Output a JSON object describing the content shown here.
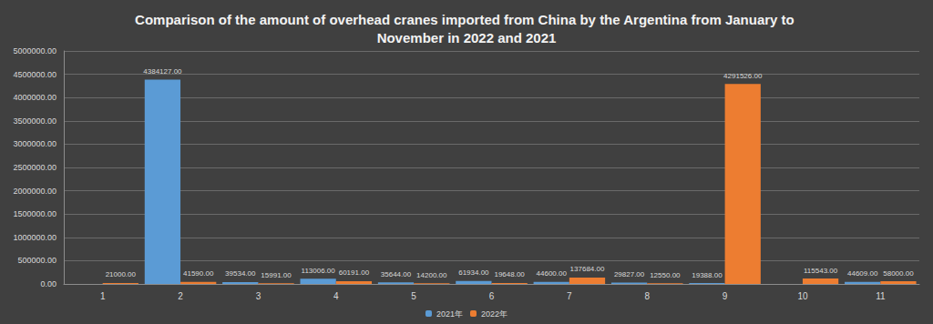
{
  "chart_data": {
    "type": "bar",
    "title": "Comparison of the amount of overhead cranes imported from China by the Argentina from January to November in 2022 and 2021",
    "categories": [
      "1",
      "2",
      "3",
      "4",
      "5",
      "6",
      "7",
      "8",
      "9",
      "10",
      "11"
    ],
    "series": [
      {
        "name": "2021年",
        "color": "#5b9bd5",
        "values": [
          null,
          4384127,
          39534,
          113006,
          35644,
          61934,
          44600,
          29827,
          19388,
          null,
          44609
        ],
        "value_labels": [
          null,
          "4384127.00",
          "39534.00",
          "113006.00",
          "35644.00",
          "61934.00",
          "44600.00",
          "29827.00",
          "19388.00",
          null,
          "44609.00"
        ]
      },
      {
        "name": "2022年",
        "color": "#ed7d31",
        "values": [
          21000,
          41590,
          15991,
          60191,
          14200,
          19648,
          137684,
          12550,
          4291526,
          115543,
          58000
        ],
        "value_labels": [
          "21000.00",
          "41590.00",
          "15991.00",
          "60191.00",
          "14200.00",
          "19648.00",
          "137684.00",
          "12550.00",
          "4291526.00",
          "115543.00",
          "58000.00"
        ]
      }
    ],
    "ylim": [
      0,
      5000000
    ],
    "yticks": [
      {
        "value": 0,
        "label": "0.00"
      },
      {
        "value": 500000,
        "label": "500000.00"
      },
      {
        "value": 1000000,
        "label": "1000000.00"
      },
      {
        "value": 1500000,
        "label": "1500000.00"
      },
      {
        "value": 2000000,
        "label": "2000000.00"
      },
      {
        "value": 2500000,
        "label": "2500000.00"
      },
      {
        "value": 3000000,
        "label": "3000000.00"
      },
      {
        "value": 3500000,
        "label": "3500000.00"
      },
      {
        "value": 4000000,
        "label": "4000000.00"
      },
      {
        "value": 4500000,
        "label": "4500000.00"
      },
      {
        "value": 5000000,
        "label": "5000000.00"
      }
    ],
    "grid": true,
    "legend": "bottom",
    "data_labels": true
  }
}
